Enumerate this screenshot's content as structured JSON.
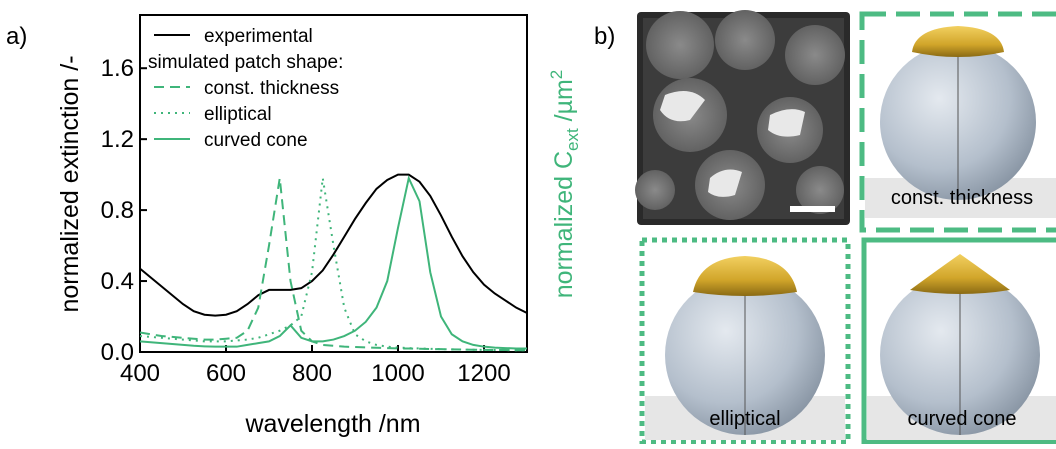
{
  "chart_data": {
    "type": "line",
    "panel_label": "a)",
    "xlabel": "wavelength /nm",
    "ylabel": "normalized extinction /-",
    "y2label": {
      "main": "normalized C",
      "sub": "ext",
      "rest": " /µm",
      "sup": "2"
    },
    "legend_heading": "simulated patch shape:",
    "legend": "upper left",
    "xlim": [
      400,
      1300
    ],
    "ylim": [
      0,
      1.9
    ],
    "xticks": [
      400,
      600,
      800,
      1000,
      1200
    ],
    "yticks": [
      {
        "value": 0,
        "label": "0.0"
      },
      0.4,
      0.8,
      1.2,
      1.6
    ],
    "x": [
      400,
      425,
      450,
      475,
      500,
      525,
      550,
      575,
      600,
      625,
      650,
      675,
      700,
      725,
      750,
      775,
      800,
      825,
      850,
      875,
      900,
      925,
      950,
      975,
      1000,
      1025,
      1050,
      1075,
      1100,
      1125,
      1150,
      1175,
      1200,
      1225,
      1250,
      1275,
      1300
    ],
    "series": [
      {
        "name": "experimental",
        "color": "#000000",
        "dash": "solid",
        "values": [
          0.47,
          0.42,
          0.37,
          0.32,
          0.27,
          0.23,
          0.21,
          0.205,
          0.21,
          0.23,
          0.27,
          0.32,
          0.35,
          0.35,
          0.35,
          0.36,
          0.4,
          0.46,
          0.55,
          0.65,
          0.75,
          0.84,
          0.92,
          0.97,
          1.0,
          1.0,
          0.96,
          0.88,
          0.77,
          0.65,
          0.54,
          0.45,
          0.38,
          0.33,
          0.29,
          0.25,
          0.22
        ]
      },
      {
        "name": "const. thickness",
        "color": "#3fb57a",
        "dash": "dashed",
        "values": [
          0.11,
          0.1,
          0.09,
          0.085,
          0.08,
          0.075,
          0.07,
          0.07,
          0.075,
          0.08,
          0.12,
          0.25,
          0.6,
          0.98,
          0.4,
          0.12,
          0.06,
          0.04,
          0.035,
          0.03,
          0.028,
          0.026,
          0.024,
          0.022,
          0.02,
          0.02,
          0.018,
          0.017,
          0.016,
          0.015,
          0.014,
          0.013,
          0.012,
          0.011,
          0.011,
          0.01,
          0.01
        ]
      },
      {
        "name": "elliptical",
        "color": "#3fb57a",
        "dash": "dotted",
        "values": [
          0.09,
          0.085,
          0.08,
          0.075,
          0.07,
          0.065,
          0.06,
          0.06,
          0.06,
          0.065,
          0.07,
          0.08,
          0.1,
          0.12,
          0.15,
          0.2,
          0.45,
          0.98,
          0.6,
          0.25,
          0.1,
          0.06,
          0.04,
          0.03,
          0.025,
          0.022,
          0.02,
          0.018,
          0.016,
          0.015,
          0.014,
          0.013,
          0.012,
          0.011,
          0.011,
          0.01,
          0.01
        ]
      },
      {
        "name": "curved cone",
        "color": "#3fb57a",
        "dash": "solid",
        "values": [
          0.06,
          0.055,
          0.05,
          0.045,
          0.04,
          0.035,
          0.032,
          0.03,
          0.03,
          0.03,
          0.04,
          0.05,
          0.06,
          0.09,
          0.15,
          0.08,
          0.06,
          0.06,
          0.07,
          0.09,
          0.12,
          0.17,
          0.25,
          0.4,
          0.7,
          0.98,
          0.85,
          0.45,
          0.2,
          0.1,
          0.06,
          0.04,
          0.03,
          0.025,
          0.022,
          0.02,
          0.02
        ]
      }
    ]
  },
  "panel_b": {
    "label": "b)",
    "shapes": [
      "const. thickness",
      "elliptical",
      "curved cone"
    ]
  }
}
